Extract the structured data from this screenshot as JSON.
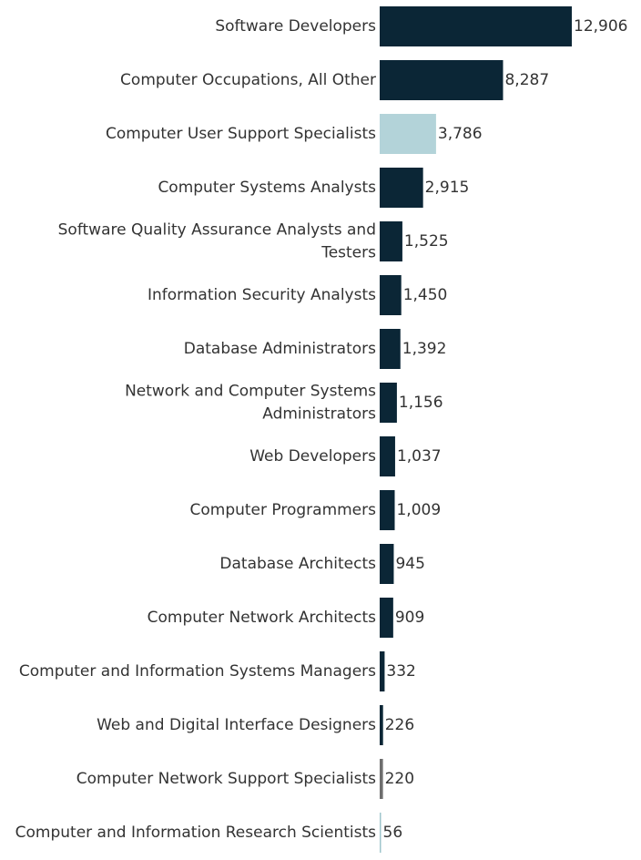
{
  "chart_data": {
    "type": "bar",
    "orientation": "horizontal",
    "title": "",
    "xlabel": "",
    "ylabel": "",
    "grid": false,
    "legend": "none",
    "xlim": [
      0,
      12906
    ],
    "categories": [
      [
        "Software Developers"
      ],
      [
        "Computer Occupations, All Other"
      ],
      [
        "Computer User Support Specialists"
      ],
      [
        "Computer Systems Analysts"
      ],
      [
        "Software Quality Assurance Analysts and",
        "Testers"
      ],
      [
        "Information Security Analysts"
      ],
      [
        "Database Administrators"
      ],
      [
        "Network and Computer Systems",
        "Administrators"
      ],
      [
        "Web Developers"
      ],
      [
        "Computer Programmers"
      ],
      [
        "Database Architects"
      ],
      [
        "Computer Network Architects"
      ],
      [
        "Computer and Information Systems Managers"
      ],
      [
        "Web and Digital Interface Designers"
      ],
      [
        "Computer Network Support Specialists"
      ],
      [
        "Computer and Information Research Scientists"
      ]
    ],
    "values": [
      12906,
      8287,
      3786,
      2915,
      1525,
      1450,
      1392,
      1156,
      1037,
      1009,
      945,
      909,
      332,
      226,
      220,
      56
    ],
    "value_labels": [
      "12,906",
      "8,287",
      "3,786",
      "2,915",
      "1,525",
      "1,450",
      "1,392",
      "1,156",
      "1,037",
      "1,009",
      "945",
      "909",
      "332",
      "226",
      "220",
      "56"
    ],
    "bar_colors": [
      "#0b2636",
      "#0b2636",
      "#b3d3d9",
      "#0b2636",
      "#0b2636",
      "#0b2636",
      "#0b2636",
      "#0b2636",
      "#0b2636",
      "#0b2636",
      "#0b2636",
      "#0b2636",
      "#0b2636",
      "#0b2636",
      "#6e6e6e",
      "#9fc6cc"
    ]
  }
}
